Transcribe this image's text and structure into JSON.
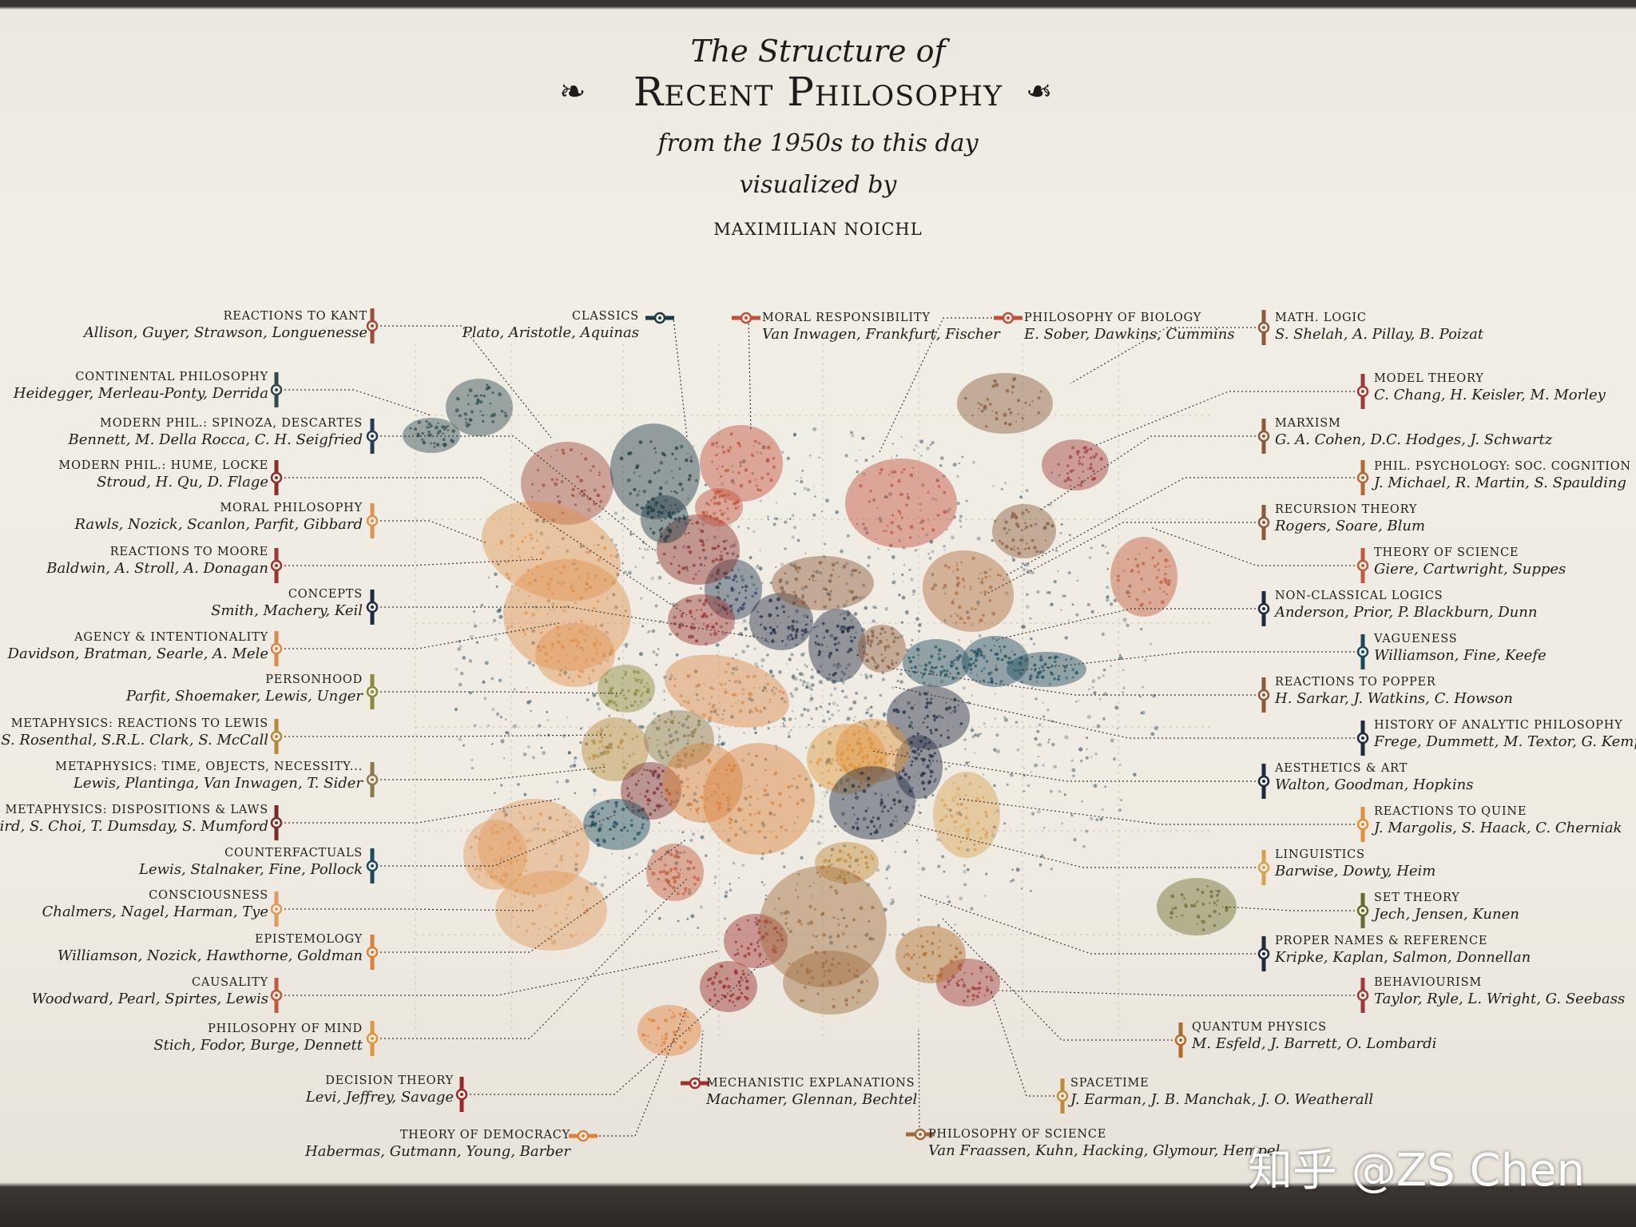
{
  "poster": {
    "title_line1": "The Structure of",
    "title_line2": "Recent Philosophy",
    "title_line3": "from the 1950s to this day",
    "title_line4": "visualized by",
    "author": "MAXIMILIAN NOICHL"
  },
  "watermark": "知乎 @ZS Chen",
  "clusters": [
    {
      "id": "kant",
      "name": "Reactions to Kant",
      "authors": "Allison, Guyer, Strawson, Longuenesse",
      "color": "#a04a3a"
    },
    {
      "id": "continental",
      "name": "Continental Philosophy",
      "authors": "Heidegger, Merleau-Ponty, Derrida",
      "color": "#2e4a4e"
    },
    {
      "id": "spinoza",
      "name": "Modern Phil.: Spinoza, Descartes",
      "authors": "Bennett, M. Della Rocca, C. H. Seigfried",
      "color": "#263a55"
    },
    {
      "id": "hume",
      "name": "Modern Phil.: Hume, Locke",
      "authors": "Stroud, H. Qu, D. Flage",
      "color": "#8a2f2a"
    },
    {
      "id": "moral",
      "name": "Moral Philosophy",
      "authors": "Rawls, Nozick, Scanlon, Parfit, Gibbard",
      "color": "#e0924e"
    },
    {
      "id": "moore",
      "name": "Reactions to Moore",
      "authors": "Baldwin, A. Stroll, A. Donagan",
      "color": "#9a3530"
    },
    {
      "id": "concepts",
      "name": "Concepts",
      "authors": "Smith, Machery, Keil",
      "color": "#1e2a40"
    },
    {
      "id": "agency",
      "name": "Agency & Intentionality",
      "authors": "Davidson, Bratman, Searle, A. Mele",
      "color": "#d9894a"
    },
    {
      "id": "personhood",
      "name": "Personhood",
      "authors": "Parfit, Shoemaker, Lewis, Unger",
      "color": "#8a8a3a"
    },
    {
      "id": "lewis",
      "name": "Metaphysics: Reactions to Lewis",
      "authors": "S. Rosenthal, S.R.L. Clark, S. McCall",
      "color": "#b38a3a"
    },
    {
      "id": "time",
      "name": "Metaphysics: Time, Objects, Necessity...",
      "authors": "Lewis, Plantinga, Van Inwagen, T. Sider",
      "color": "#8a7a4a"
    },
    {
      "id": "dispositions",
      "name": "Metaphysics: Dispositions & Laws",
      "authors": "A. Bird, S. Choi, T. Dumsday, S. Mumford",
      "color": "#7a2a2a"
    },
    {
      "id": "counterfactuals",
      "name": "Counterfactuals",
      "authors": "Lewis, Stalnaker, Fine, Pollock",
      "color": "#1a4a5a"
    },
    {
      "id": "consciousness",
      "name": "Consciousness",
      "authors": "Chalmers, Nagel, Harman, Tye",
      "color": "#e09a5a"
    },
    {
      "id": "epistemology",
      "name": "Epistemology",
      "authors": "Williamson, Nozick, Hawthorne, Goldman",
      "color": "#d9803a"
    },
    {
      "id": "causality",
      "name": "Causality",
      "authors": "Woodward, Pearl, Spirtes, Lewis",
      "color": "#c05a3a"
    },
    {
      "id": "mind",
      "name": "Philosophy of Mind",
      "authors": "Stich, Fodor, Burge, Dennett",
      "color": "#e0963a"
    },
    {
      "id": "decision",
      "name": "Decision Theory",
      "authors": "Levi, Jeffrey, Savage",
      "color": "#9a2a2a"
    },
    {
      "id": "democracy",
      "name": "Theory of Democracy",
      "authors": "Habermas, Gutmann, Young, Barber",
      "color": "#e0803a"
    },
    {
      "id": "classics",
      "name": "Classics",
      "authors": "Plato, Aristotle, Aquinas",
      "color": "#1e3a44"
    },
    {
      "id": "responsibility",
      "name": "Moral Responsibility",
      "authors": "Van Inwagen, Frankfurt, Fischer",
      "color": "#c0503a"
    },
    {
      "id": "biology",
      "name": "Philosophy of Biology",
      "authors": "E. Sober, Dawkins, Cummins",
      "color": "#c0503a"
    },
    {
      "id": "mathlogic",
      "name": "Math. Logic",
      "authors": "S. Shelah, A. Pillay, B. Poizat",
      "color": "#8a5a3a"
    },
    {
      "id": "model",
      "name": "Model Theory",
      "authors": "C. Chang, H. Keisler, M. Morley",
      "color": "#a03a3a"
    },
    {
      "id": "marxism",
      "name": "Marxism",
      "authors": "G. A. Cohen, D.C. Hodges, J. Schwartz",
      "color": "#8a5a3a"
    },
    {
      "id": "socialcog",
      "name": "Phil. Psychology: Soc. Cognition",
      "authors": "J. Michael, R. Martin, S. Spaulding",
      "color": "#b06a3a"
    },
    {
      "id": "recursion",
      "name": "Recursion Theory",
      "authors": "Rogers, Soare, Blum",
      "color": "#8a5a3a"
    },
    {
      "id": "theoryscience",
      "name": "Theory of Science",
      "authors": "Giere, Cartwright, Suppes",
      "color": "#c05a3a"
    },
    {
      "id": "nonclassical",
      "name": "Non-classical Logics",
      "authors": "Anderson, Prior, P. Blackburn, Dunn",
      "color": "#1e2a40"
    },
    {
      "id": "vagueness",
      "name": "Vagueness",
      "authors": "Williamson, Fine, Keefe",
      "color": "#1a4a5a"
    },
    {
      "id": "popper",
      "name": "Reactions to Popper",
      "authors": "H. Sarkar, J. Watkins, C. Howson",
      "color": "#8a5a3a"
    },
    {
      "id": "analytic",
      "name": "History of Analytic Philosophy",
      "authors": "Frege, Dummett, M. Textor, G. Kemp",
      "color": "#1e2a40"
    },
    {
      "id": "aesthetics",
      "name": "Aesthetics & Art",
      "authors": "Walton, Goodman, Hopkins",
      "color": "#1e2a40"
    },
    {
      "id": "quine",
      "name": "Reactions to Quine",
      "authors": "J. Margolis, S. Haack, C. Cherniak",
      "color": "#e0903a"
    },
    {
      "id": "linguistics",
      "name": "Linguistics",
      "authors": "Barwise, Dowty, Heim",
      "color": "#d9a050"
    },
    {
      "id": "settheory",
      "name": "Set Theory",
      "authors": "Jech, Jensen, Kunen",
      "color": "#6a6a2a"
    },
    {
      "id": "propernames",
      "name": "Proper Names & Reference",
      "authors": "Kripke, Kaplan, Salmon, Donnellan",
      "color": "#1e2a40"
    },
    {
      "id": "behaviourism",
      "name": "Behaviourism",
      "authors": "Taylor, Ryle, L. Wright, G. Seebass",
      "color": "#a03a3a"
    },
    {
      "id": "quantum",
      "name": "Quantum Physics",
      "authors": "M. Esfeld, J. Barrett, O. Lombardi",
      "color": "#b06a2a"
    },
    {
      "id": "mechanistic",
      "name": "Mechanistic Explanations",
      "authors": "Machamer, Glennan, Bechtel",
      "color": "#a03030"
    },
    {
      "id": "spacetime",
      "name": "Spacetime",
      "authors": "J. Earman, J. B. Manchak, J. O. Weatherall",
      "color": "#c08a3a"
    },
    {
      "id": "philscience",
      "name": "Philosophy of Science",
      "authors": "Van Fraassen, Kuhn, Hacking, Glymour, Hempel",
      "color": "#a06a3a"
    }
  ]
}
